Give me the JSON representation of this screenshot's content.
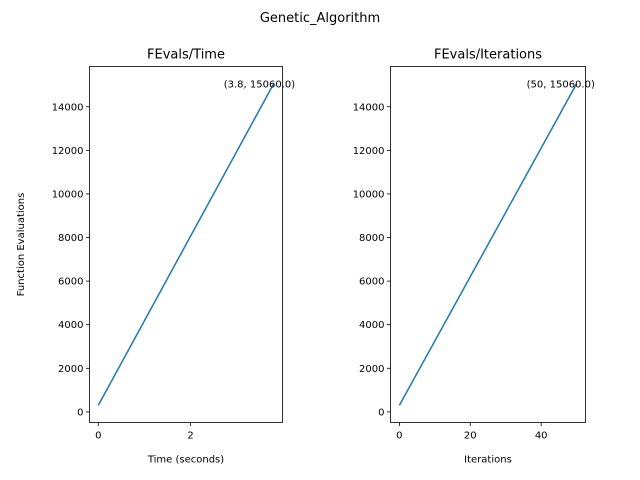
{
  "chart_data": {
    "suptitle": "Genetic_Algorithm",
    "charts": [
      {
        "type": "line",
        "title": "FEvals/Time",
        "xlabel": "Time (seconds)",
        "ylabel": "Function Evaluations",
        "xlim": [
          -0.19,
          3.99
        ],
        "ylim": [
          -487,
          15847
        ],
        "xticks": [
          0,
          2
        ],
        "yticks": [
          0,
          2000,
          4000,
          6000,
          8000,
          10000,
          12000,
          14000
        ],
        "series": [
          {
            "x": [
              0,
              3.8
            ],
            "y": [
              300,
              15060
            ],
            "color": "#1f77b4"
          }
        ],
        "annotation": {
          "text": "(3.8, 15060.0)",
          "x": 3.8,
          "y": 15060
        }
      },
      {
        "type": "line",
        "title": "FEvals/Iterations",
        "xlabel": "Iterations",
        "ylabel": "",
        "xlim": [
          -2.5,
          52.5
        ],
        "ylim": [
          -487,
          15847
        ],
        "xticks": [
          0,
          20,
          40
        ],
        "yticks": [
          0,
          2000,
          4000,
          6000,
          8000,
          10000,
          12000,
          14000
        ],
        "series": [
          {
            "x": [
              0,
              50
            ],
            "y": [
              300,
              15060
            ],
            "color": "#1f77b4"
          }
        ],
        "annotation": {
          "text": "(50, 15060.0)",
          "x": 50,
          "y": 15060
        }
      }
    ]
  }
}
